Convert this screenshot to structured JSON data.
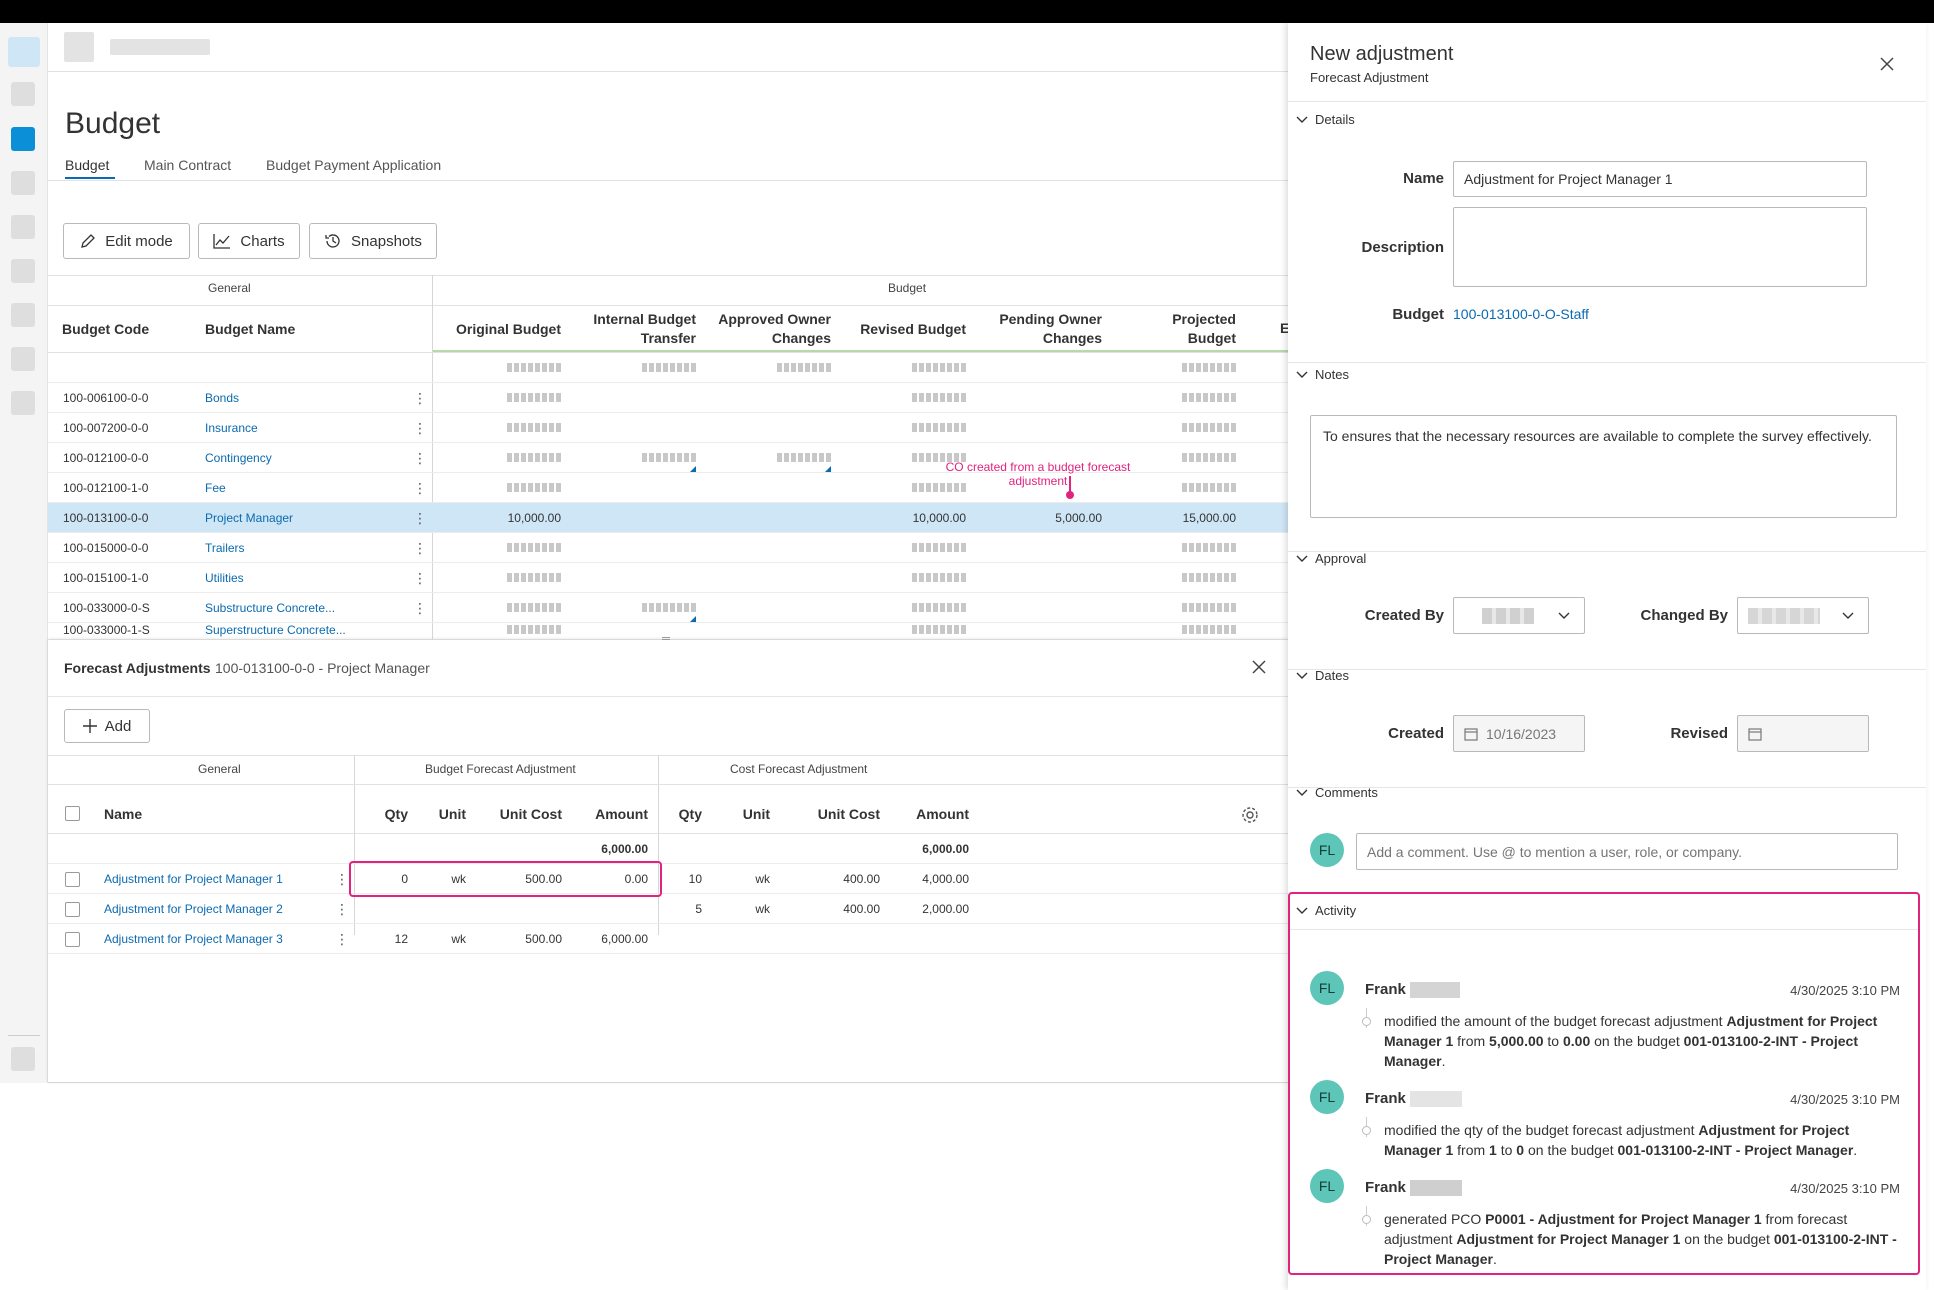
{
  "page": {
    "title": "Budget"
  },
  "tabs": [
    {
      "label": "Budget",
      "active": true
    },
    {
      "label": "Main Contract",
      "active": false
    },
    {
      "label": "Budget Payment Application",
      "active": false
    }
  ],
  "toolbar": {
    "edit_mode": "Edit mode",
    "charts": "Charts",
    "snapshots": "Snapshots"
  },
  "budget_table": {
    "group_general": "General",
    "group_budget": "Budget",
    "columns": {
      "code": "Budget Code",
      "name": "Budget Name",
      "original": "Original Budget",
      "internal_1": "Internal Budget",
      "internal_2": "Transfer",
      "approved_1": "Approved Owner",
      "approved_2": "Changes",
      "revised": "Revised Budget",
      "pending_1": "Pending Owner",
      "pending_2": "Changes",
      "projected_1": "Projected",
      "projected_2": "Budget"
    },
    "rows": [
      {
        "code": "100-006100-0-0",
        "name": "Bonds"
      },
      {
        "code": "100-007200-0-0",
        "name": "Insurance"
      },
      {
        "code": "100-012100-0-0",
        "name": "Contingency"
      },
      {
        "code": "100-012100-1-0",
        "name": "Fee"
      },
      {
        "code": "100-013100-0-0",
        "name": "Project Manager",
        "original": "10,000.00",
        "revised": "10,000.00",
        "pending": "5,000.00",
        "projected": "15,000.00"
      },
      {
        "code": "100-015000-0-0",
        "name": "Trailers"
      },
      {
        "code": "100-015100-1-0",
        "name": "Utilities"
      },
      {
        "code": "100-033000-0-S",
        "name": "Substructure Concrete..."
      },
      {
        "code": "100-033000-1-S",
        "name": "Superstructure Concrete..."
      }
    ],
    "annotation": "CO created from a budget forecast adjustment"
  },
  "forecast": {
    "title": "Forecast Adjustments",
    "subtitle": "100-013100-0-0 - Project Manager",
    "add_label": "Add",
    "group_general": "General",
    "group_budget": "Budget Forecast Adjustment",
    "group_cost": "Cost Forecast Adjustment",
    "col_name": "Name",
    "col_qty": "Qty",
    "col_unit": "Unit",
    "col_unit_cost": "Unit Cost",
    "col_amount": "Amount",
    "totals": {
      "budget_amount": "6,000.00",
      "cost_amount": "6,000.00"
    },
    "rows": [
      {
        "name": "Adjustment for Project Manager 1",
        "b_qty": "0",
        "b_unit": "wk",
        "b_cost": "500.00",
        "b_amount": "0.00",
        "c_qty": "10",
        "c_unit": "wk",
        "c_cost": "400.00",
        "c_amount": "4,000.00"
      },
      {
        "name": "Adjustment for Project Manager 2",
        "b_qty": "",
        "b_unit": "",
        "b_cost": "",
        "b_amount": "",
        "c_qty": "5",
        "c_unit": "wk",
        "c_cost": "400.00",
        "c_amount": "2,000.00"
      },
      {
        "name": "Adjustment for Project Manager 3",
        "b_qty": "12",
        "b_unit": "wk",
        "b_cost": "500.00",
        "b_amount": "6,000.00",
        "c_qty": "",
        "c_unit": "",
        "c_cost": "",
        "c_amount": ""
      }
    ]
  },
  "panel": {
    "title": "New adjustment",
    "subtitle": "Forecast Adjustment",
    "sections": {
      "details": "Details",
      "notes": "Notes",
      "approval": "Approval",
      "dates": "Dates",
      "comments": "Comments",
      "activity": "Activity"
    },
    "details": {
      "name_label": "Name",
      "name_value": "Adjustment for Project Manager 1",
      "description_label": "Description",
      "budget_label": "Budget",
      "budget_value": "100-013100-0-O-Staff"
    },
    "notes_text": "To ensures that the necessary resources are available to complete the survey effectively.",
    "approval": {
      "created_by": "Created By",
      "changed_by": "Changed By"
    },
    "dates": {
      "created_label": "Created",
      "created_value": "10/16/2023",
      "revised_label": "Revised"
    },
    "comments": {
      "avatar": "FL",
      "placeholder": "Add a comment. Use @ to mention a user, role, or company."
    },
    "activity": [
      {
        "initials": "FL",
        "name": "Frank",
        "time": "4/30/2025 3:10 PM",
        "p1": "modified the amount of the budget forecast adjustment ",
        "b1": "Adjustment for Project Manager 1",
        "p2": " from ",
        "b2": "5,000.00",
        "p3": " to ",
        "b3": "0.00",
        "p4": " on the budget ",
        "b4": "001-013100-2-INT - Project Manager",
        "p5": "."
      },
      {
        "initials": "FL",
        "name": "Frank",
        "time": "4/30/2025 3:10 PM",
        "p1": "modified the qty of the budget forecast adjustment ",
        "b1": "Adjustment for Project Manager 1",
        "p2": " from ",
        "b2": "1",
        "p3": " to ",
        "b3": "0",
        "p4": " on the budget ",
        "b4": "001-013100-2-INT - Project Manager",
        "p5": "."
      },
      {
        "initials": "FL",
        "name": "Frank",
        "time": "4/30/2025 3:10 PM",
        "p1": "generated PCO ",
        "b1": "P0001 - Adjustment for Project Manager 1",
        "p2": " from forecast adjustment ",
        "b2": "Adjustment for Project Manager 1",
        "p3": " on the budget ",
        "b3": "001-013100-2-INT - Project Manager",
        "p4": "",
        "b4": "",
        "p5": "."
      }
    ]
  },
  "colors": {
    "accent": "#0b6ab0",
    "highlight_row": "#cfe6f6",
    "annotation": "#e0237f",
    "avatar": "#5ec5b9"
  }
}
